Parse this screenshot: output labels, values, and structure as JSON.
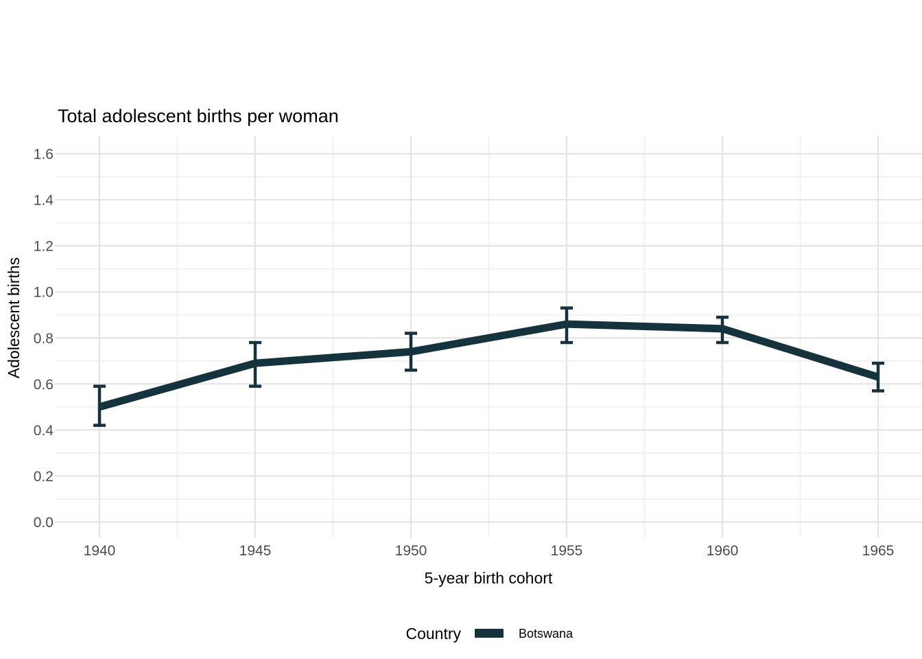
{
  "chart_data": {
    "type": "line",
    "title": "Total adolescent births per woman",
    "xlabel": "5-year birth cohort",
    "ylabel": "Adolescent births",
    "x": [
      1940,
      1945,
      1950,
      1955,
      1960,
      1965
    ],
    "x_tick_labels": [
      "1940",
      "1945",
      "1950",
      "1955",
      "1960",
      "1965"
    ],
    "series": [
      {
        "name": "Botswana",
        "values": [
          0.5,
          0.69,
          0.74,
          0.86,
          0.84,
          0.63
        ],
        "ci_low": [
          0.42,
          0.59,
          0.66,
          0.78,
          0.78,
          0.57
        ],
        "ci_high": [
          0.59,
          0.78,
          0.82,
          0.93,
          0.89,
          0.69
        ],
        "color": "#14333D"
      }
    ],
    "ylim": [
      0.0,
      1.6
    ],
    "y_major_ticks": [
      0.0,
      0.2,
      0.4,
      0.6,
      0.8,
      1.0,
      1.2,
      1.4,
      1.6
    ],
    "y_tick_labels": [
      "0.0",
      "0.2",
      "0.4",
      "0.6",
      "0.8",
      "1.0",
      "1.2",
      "1.4",
      "1.6"
    ],
    "grid": "major-and-minor",
    "legend_position": "bottom"
  },
  "legend": {
    "title": "Country",
    "items": [
      {
        "label": "Botswana",
        "color": "#14333D"
      }
    ]
  },
  "colors": {
    "line": "#14333D",
    "grid_major": "#E4E4E4",
    "grid_minor": "#F0F0F0",
    "tick_label": "#4D4D4D",
    "text": "#000000",
    "background": "#FFFFFF"
  }
}
